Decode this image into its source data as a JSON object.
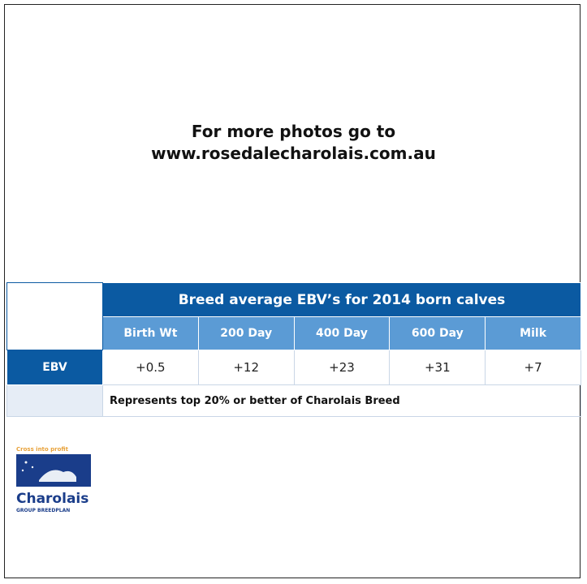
{
  "heading": {
    "line1": "For more photos go to",
    "line2": "www.rosedalecharolais.com.au"
  },
  "table": {
    "title": "Breed average EBV’s for 2014 born calves",
    "columns": [
      "Birth Wt",
      "200 Day",
      "400 Day",
      "600 Day",
      "Milk"
    ],
    "row_label": "EBV",
    "values": [
      "+0.5",
      "+12",
      "+23",
      "+31",
      "+7"
    ],
    "note": "Represents top 20% or better of Charolais Breed"
  },
  "logo": {
    "tagline": "Cross into profit",
    "name": "Charolais",
    "sub": "GROUP BREEDPLAN"
  }
}
